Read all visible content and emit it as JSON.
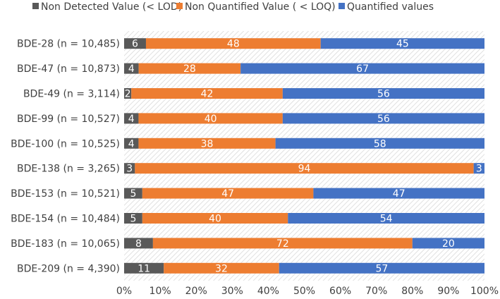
{
  "chart_data": {
    "type": "bar",
    "orientation": "horizontal",
    "stacked": "percent",
    "title": "",
    "xlabel": "",
    "ylabel": "",
    "xlim": [
      0,
      100
    ],
    "legend_position": "top",
    "categories": [
      "BDE-28 (n = 10,485)",
      "BDE-47 (n = 10,873)",
      "BDE-49 (n = 3,114)",
      "BDE-99 (n = 10,527)",
      "BDE-100 (n = 10,525)",
      "BDE-138 (n = 3,265)",
      "BDE-153 (n = 10,521)",
      "BDE-154 (n = 10,484)",
      "BDE-183 (n = 10,065)",
      "BDE-209 (n = 4,390)"
    ],
    "series": [
      {
        "name": "Non Detected Value (< LOD)",
        "color": "#595959",
        "values": [
          6,
          4,
          2,
          4,
          4,
          3,
          5,
          5,
          8,
          11
        ]
      },
      {
        "name": "Non Quantified Value ( < LOQ)",
        "color": "#ED7D31",
        "values": [
          48,
          28,
          42,
          40,
          38,
          94,
          47,
          40,
          72,
          32
        ]
      },
      {
        "name": "Quantified values",
        "color": "#4472C4",
        "values": [
          45,
          67,
          56,
          56,
          58,
          3,
          47,
          54,
          20,
          57
        ]
      }
    ],
    "x_ticks": [
      "0%",
      "10%",
      "20%",
      "30%",
      "40%",
      "50%",
      "60%",
      "70%",
      "80%",
      "90%",
      "100%"
    ]
  }
}
